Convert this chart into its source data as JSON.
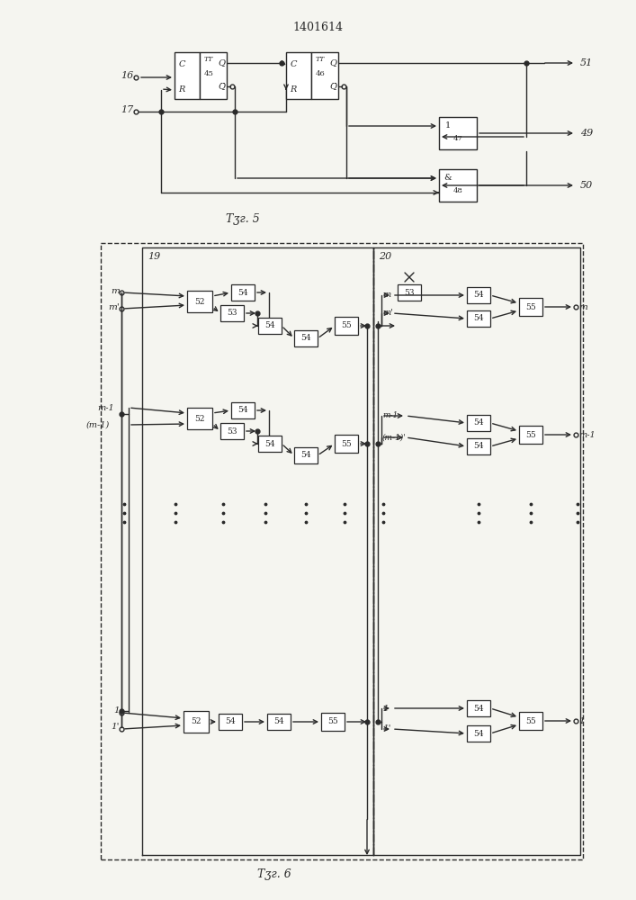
{
  "title": "1401614",
  "fig5_caption": "Τӡг. 5",
  "fig6_caption": "Τӡг. 6",
  "bg_color": "#f5f5f0",
  "line_color": "#2a2a2a"
}
